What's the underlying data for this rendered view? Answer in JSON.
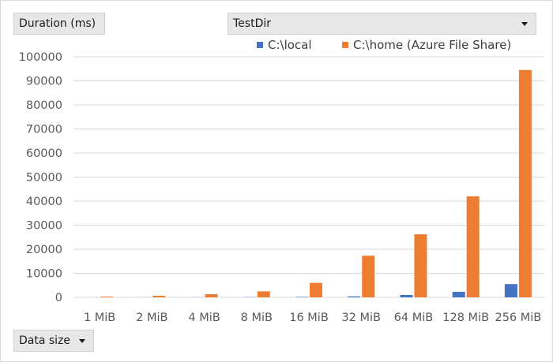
{
  "pivot": {
    "value_field_label": "Duration (ms)",
    "filter_field_label": "TestDir",
    "axis_field_label": "Data size"
  },
  "icons": {
    "filter_dropdown": "chevron-down-icon",
    "axis_dropdown": "chevron-down-icon"
  },
  "chart_data": {
    "type": "bar",
    "title": "",
    "xlabel": "Data size",
    "ylabel": "Duration (ms)",
    "categories": [
      "1 MiB",
      "2 MiB",
      "4 MiB",
      "8 MiB",
      "16 MiB",
      "32 MiB",
      "64 MiB",
      "128 MiB",
      "256 MiB"
    ],
    "series": [
      {
        "name": "C:\\local",
        "color": "#4472c4",
        "values": [
          20,
          30,
          50,
          90,
          180,
          400,
          1000,
          2300,
          5500
        ]
      },
      {
        "name": "C:\\home (Azure File Share)",
        "color": "#ed7d31",
        "values": [
          300,
          650,
          1300,
          2500,
          6000,
          17300,
          26200,
          42000,
          94500
        ]
      }
    ],
    "ylim": [
      0,
      100000
    ],
    "yticks": [
      0,
      10000,
      20000,
      30000,
      40000,
      50000,
      60000,
      70000,
      80000,
      90000,
      100000
    ],
    "grid": true,
    "legend_position": "top-right"
  }
}
